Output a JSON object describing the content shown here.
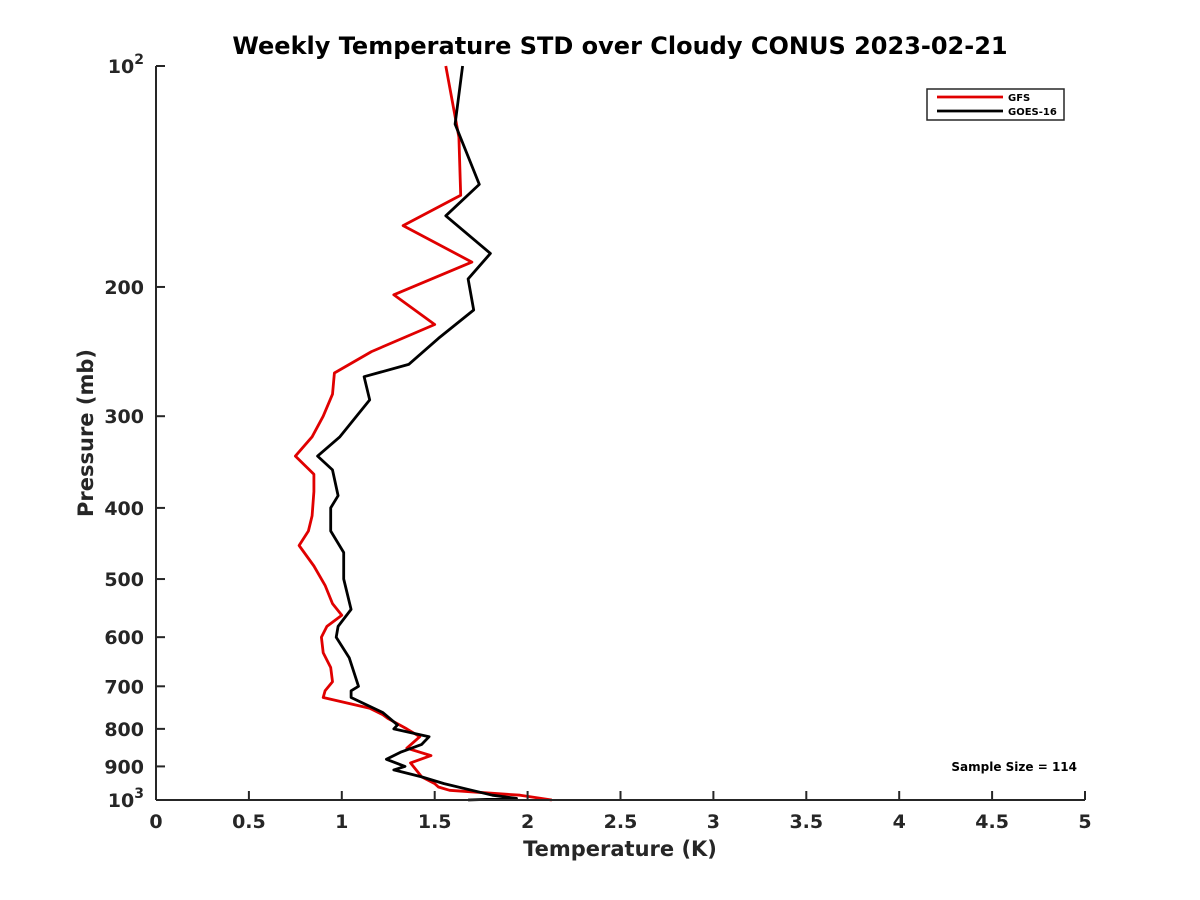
{
  "chart_data": {
    "type": "line",
    "title": "Weekly Temperature STD over Cloudy CONUS 2023-02-21",
    "xlabel": "Temperature (K)",
    "ylabel": "Pressure (mb)",
    "xlim": [
      0,
      5
    ],
    "ylim": [
      100,
      1000
    ],
    "y_scale": "log",
    "y_reversed": true,
    "grid": false,
    "x_ticks": [
      {
        "value": 0,
        "label": "0"
      },
      {
        "value": 0.5,
        "label": "0.5"
      },
      {
        "value": 1,
        "label": "1"
      },
      {
        "value": 1.5,
        "label": "1.5"
      },
      {
        "value": 2,
        "label": "2"
      },
      {
        "value": 2.5,
        "label": "2.5"
      },
      {
        "value": 3,
        "label": "3"
      },
      {
        "value": 3.5,
        "label": "3.5"
      },
      {
        "value": 4,
        "label": "4"
      },
      {
        "value": 4.5,
        "label": "4.5"
      },
      {
        "value": 5,
        "label": "5"
      }
    ],
    "y_ticks": [
      {
        "value": 100,
        "base": "10",
        "exp": "2"
      },
      {
        "value": 200,
        "label": "200"
      },
      {
        "value": 300,
        "label": "300"
      },
      {
        "value": 400,
        "label": "400"
      },
      {
        "value": 500,
        "label": "500"
      },
      {
        "value": 600,
        "label": "600"
      },
      {
        "value": 700,
        "label": "700"
      },
      {
        "value": 800,
        "label": "800"
      },
      {
        "value": 900,
        "label": "900"
      },
      {
        "value": 1000,
        "base": "10",
        "exp": "3"
      }
    ],
    "legend_position": "top-right",
    "annotation": "Sample Size = 114",
    "series": [
      {
        "name": "GFS",
        "color": "#e00000",
        "points": [
          [
            1.56,
            100
          ],
          [
            1.63,
            125
          ],
          [
            1.64,
            150
          ],
          [
            1.33,
            165
          ],
          [
            1.7,
            185
          ],
          [
            1.28,
            205
          ],
          [
            1.5,
            225
          ],
          [
            1.16,
            245
          ],
          [
            0.96,
            262
          ],
          [
            0.95,
            280
          ],
          [
            0.9,
            300
          ],
          [
            0.84,
            320
          ],
          [
            0.75,
            340
          ],
          [
            0.85,
            360
          ],
          [
            0.85,
            380
          ],
          [
            0.84,
            410
          ],
          [
            0.82,
            430
          ],
          [
            0.77,
            450
          ],
          [
            0.85,
            480
          ],
          [
            0.91,
            510
          ],
          [
            0.95,
            540
          ],
          [
            1.0,
            560
          ],
          [
            0.92,
            580
          ],
          [
            0.89,
            600
          ],
          [
            0.9,
            630
          ],
          [
            0.94,
            660
          ],
          [
            0.95,
            690
          ],
          [
            0.91,
            710
          ],
          [
            0.9,
            725
          ],
          [
            1.15,
            750
          ],
          [
            1.22,
            765
          ],
          [
            1.25,
            775
          ],
          [
            1.35,
            800
          ],
          [
            1.42,
            820
          ],
          [
            1.35,
            850
          ],
          [
            1.48,
            870
          ],
          [
            1.37,
            890
          ],
          [
            1.4,
            910
          ],
          [
            1.43,
            930
          ],
          [
            1.5,
            950
          ],
          [
            1.52,
            960
          ],
          [
            1.58,
            970
          ],
          [
            1.96,
            985
          ],
          [
            2.13,
            1000
          ]
        ]
      },
      {
        "name": "GOES-16",
        "color": "#000000",
        "points": [
          [
            1.65,
            100
          ],
          [
            1.61,
            120
          ],
          [
            1.74,
            145
          ],
          [
            1.56,
            160
          ],
          [
            1.8,
            180
          ],
          [
            1.68,
            195
          ],
          [
            1.71,
            215
          ],
          [
            1.52,
            235
          ],
          [
            1.36,
            255
          ],
          [
            1.12,
            265
          ],
          [
            1.15,
            285
          ],
          [
            0.99,
            320
          ],
          [
            0.87,
            340
          ],
          [
            0.95,
            355
          ],
          [
            0.98,
            385
          ],
          [
            0.94,
            400
          ],
          [
            0.94,
            430
          ],
          [
            1.01,
            460
          ],
          [
            1.01,
            500
          ],
          [
            1.05,
            550
          ],
          [
            0.98,
            580
          ],
          [
            0.97,
            600
          ],
          [
            1.04,
            640
          ],
          [
            1.09,
            700
          ],
          [
            1.05,
            710
          ],
          [
            1.05,
            725
          ],
          [
            1.22,
            760
          ],
          [
            1.3,
            790
          ],
          [
            1.28,
            800
          ],
          [
            1.47,
            820
          ],
          [
            1.43,
            840
          ],
          [
            1.32,
            860
          ],
          [
            1.24,
            880
          ],
          [
            1.34,
            900
          ],
          [
            1.28,
            910
          ],
          [
            1.43,
            930
          ],
          [
            1.55,
            950
          ],
          [
            1.7,
            970
          ],
          [
            1.81,
            985
          ],
          [
            1.94,
            995
          ],
          [
            1.68,
            1000
          ]
        ]
      }
    ]
  }
}
